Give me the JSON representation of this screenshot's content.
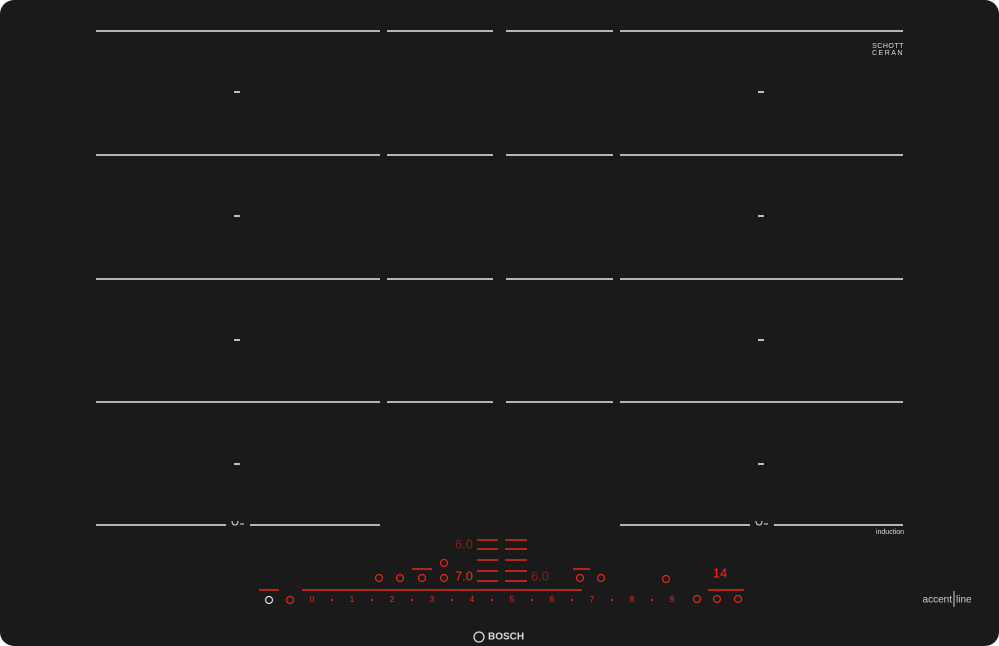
{
  "brand": "BOSCH",
  "series": [
    "accent",
    "line"
  ],
  "glass_logo": [
    "SCHOTT",
    "CERAN"
  ],
  "cooking_label": "induction",
  "displays": [
    "6.0",
    "7.0",
    "6.0",
    "14"
  ],
  "slider": [
    "0",
    "1",
    "2",
    "3",
    "4",
    "5",
    "6",
    "7",
    "8",
    "9"
  ]
}
